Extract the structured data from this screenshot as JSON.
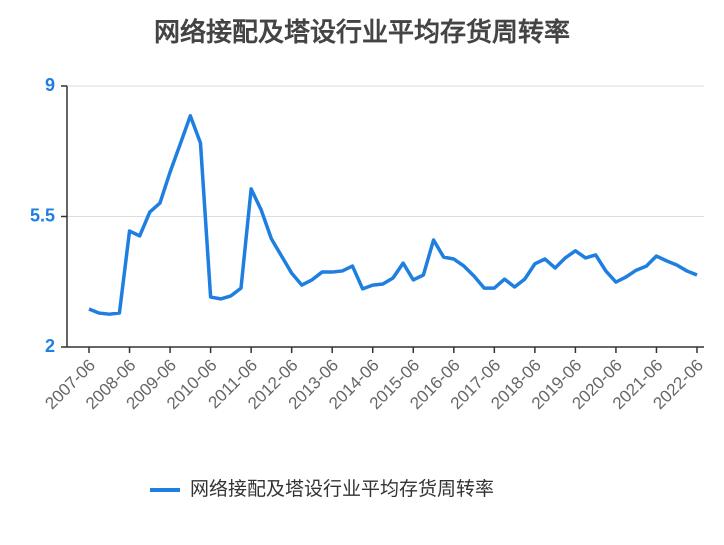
{
  "chart_data": {
    "type": "line",
    "title": "网络接配及塔设行业平均存货周转率",
    "categories": [
      "2007-06",
      null,
      null,
      null,
      "2008-06",
      null,
      null,
      null,
      "2009-06",
      null,
      null,
      null,
      "2010-06",
      null,
      null,
      null,
      "2011-06",
      null,
      null,
      null,
      "2012-06",
      null,
      null,
      null,
      "2013-06",
      null,
      null,
      null,
      "2014-06",
      null,
      null,
      null,
      "2015-06",
      null,
      null,
      null,
      "2016-06",
      null,
      null,
      null,
      "2017-06",
      null,
      null,
      null,
      "2018-06",
      null,
      null,
      null,
      "2019-06",
      null,
      null,
      null,
      "2020-06",
      null,
      null,
      null,
      "2021-06",
      null,
      null,
      null,
      "2022-06"
    ],
    "series": [
      {
        "name": "网络接配及塔设行业平均存货周转率",
        "color": "#1e7fe0",
        "values": [
          3.02,
          2.91,
          2.88,
          2.91,
          5.11,
          4.98,
          5.62,
          5.86,
          6.69,
          7.44,
          8.2,
          7.47,
          3.34,
          3.29,
          3.37,
          3.58,
          6.24,
          5.67,
          4.9,
          4.44,
          3.98,
          3.66,
          3.8,
          4.01,
          4.01,
          4.04,
          4.17,
          3.56,
          3.66,
          3.69,
          3.85,
          4.25,
          3.8,
          3.93,
          4.87,
          4.41,
          4.36,
          4.17,
          3.9,
          3.58,
          3.58,
          3.82,
          3.61,
          3.82,
          4.23,
          4.36,
          4.12,
          4.39,
          4.58,
          4.39,
          4.47,
          4.04,
          3.74,
          3.88,
          4.06,
          4.17,
          4.44,
          4.31,
          4.2,
          4.04,
          3.93
        ]
      }
    ],
    "ylim": [
      2,
      9
    ],
    "yticks": [
      2,
      5.5,
      9
    ],
    "grid": true,
    "legend": "bottom"
  }
}
